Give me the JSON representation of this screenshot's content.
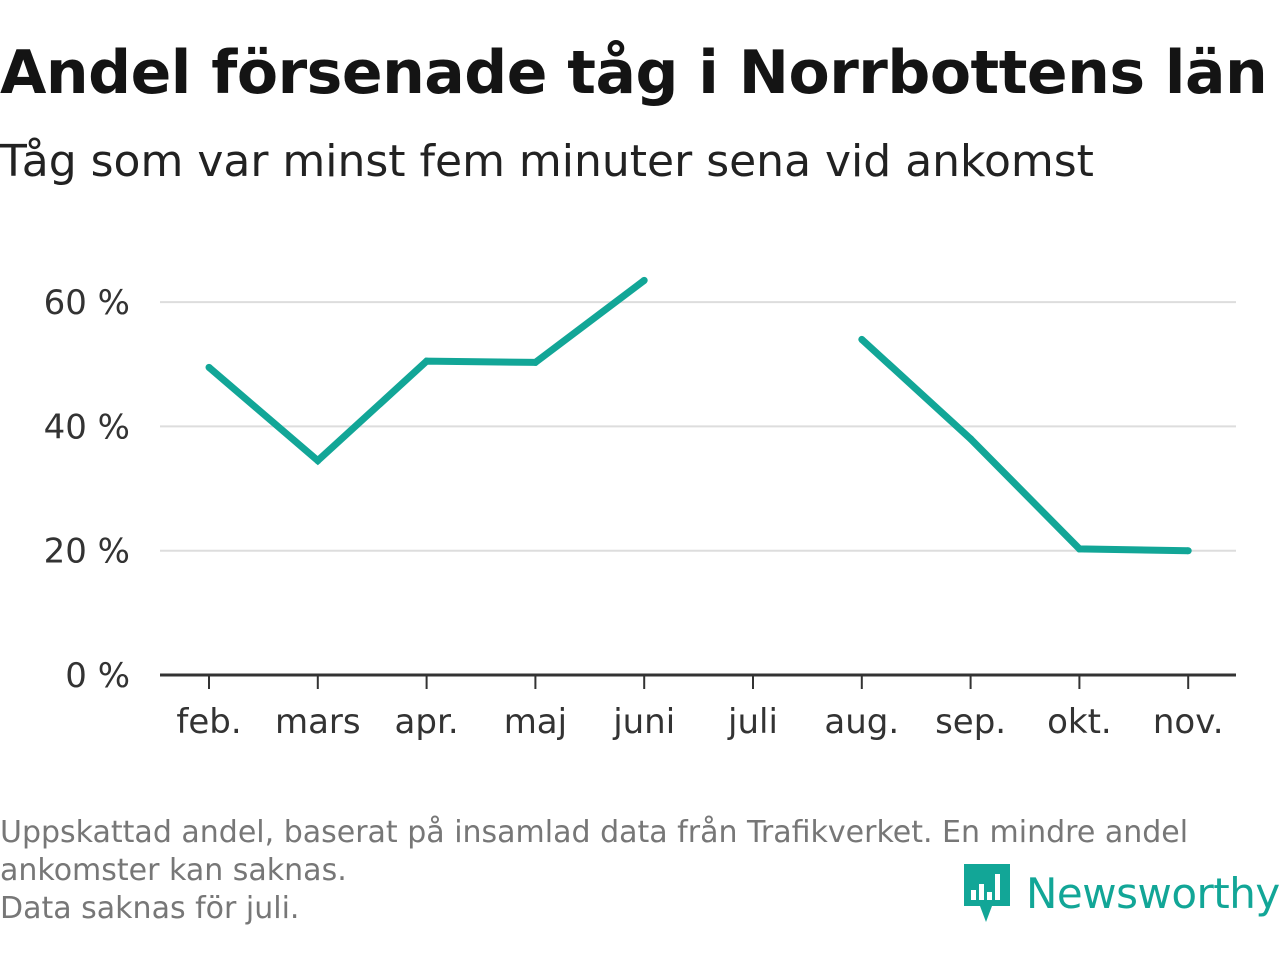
{
  "header": {
    "title": "Andel försenade tåg i Norrbottens län",
    "subtitle": "Tåg som var minst fem minuter sena vid ankomst"
  },
  "chart_data": {
    "type": "line",
    "categories": [
      "feb.",
      "mars",
      "apr.",
      "maj",
      "juni",
      "juli",
      "aug.",
      "sep.",
      "okt.",
      "nov."
    ],
    "series": [
      {
        "values": [
          49.5,
          34.5,
          50.5,
          50.3,
          63.5,
          null,
          54,
          38,
          20.3,
          20
        ]
      }
    ],
    "y_ticks": [
      0,
      20,
      40,
      60
    ],
    "y_tick_labels": [
      "0 %",
      "20 %",
      "40 %",
      "60 %"
    ],
    "ylim": [
      0,
      70
    ],
    "grid": true,
    "color": "#12a697"
  },
  "footnote": {
    "line1": "Uppskattad andel, baserat på insamlad data från Trafikverket. En mindre andel",
    "line2": "ankomster kan saknas.",
    "line3": "Data saknas för juli."
  },
  "logo": {
    "text": "Newsworthy",
    "icon": "newsworthy-logo-icon",
    "color": "#12a697"
  }
}
